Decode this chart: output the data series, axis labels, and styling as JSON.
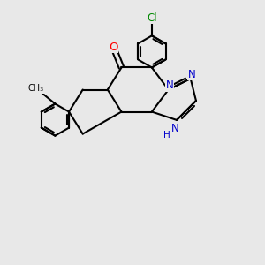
{
  "bg_color": "#e8e8e8",
  "bond_color": "#000000",
  "bond_width": 1.5,
  "N_color": "#0000cc",
  "O_color": "#ff0000",
  "Cl_color": "#008800",
  "font_size": 8.5,
  "fig_size": [
    3.0,
    3.0
  ],
  "dpi": 100,
  "xlim": [
    -3.5,
    4.5
  ],
  "ylim": [
    -4.5,
    5.0
  ]
}
